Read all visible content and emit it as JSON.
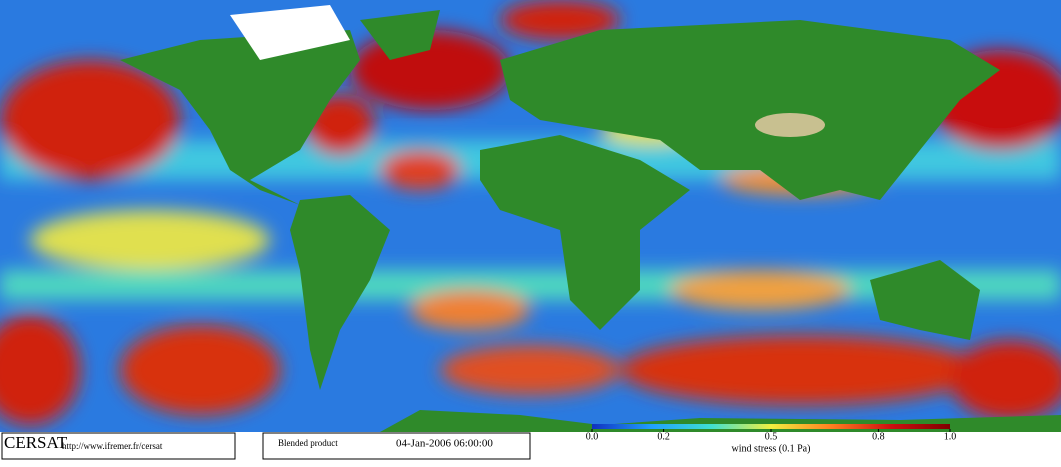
{
  "header": {
    "logo": "CERSAT",
    "url": "http://www.ifremer.fr/cersat"
  },
  "info": {
    "product": "Blended product",
    "date": "04-Jan-2006 06:00:00"
  },
  "legend": {
    "label": "wind stress (0.1 Pa)",
    "range": [
      0,
      1
    ],
    "ticks": [
      {
        "value": 0,
        "label": "0.0"
      },
      0.2,
      0.5,
      0.8,
      {
        "value": 1,
        "label": "1.0"
      }
    ],
    "colors": [
      "#1030c0",
      "#20a0ff",
      "#40e0d0",
      "#f0f040",
      "#ff8020",
      "#d01010",
      "#800000"
    ]
  }
}
